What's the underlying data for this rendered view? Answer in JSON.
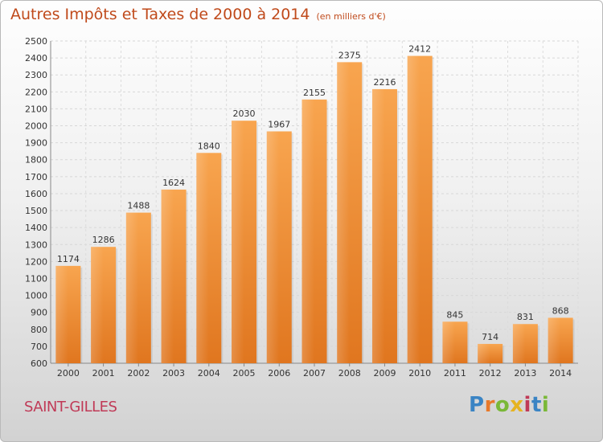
{
  "chart_data": {
    "type": "bar",
    "title": "Autres Impôts et Taxes de 2000 à 2014",
    "subtitle": "(en milliers d'€)",
    "categories": [
      "2000",
      "2001",
      "2002",
      "2003",
      "2004",
      "2005",
      "2006",
      "2007",
      "2008",
      "2009",
      "2010",
      "2011",
      "2012",
      "2013",
      "2014"
    ],
    "values": [
      1174,
      1286,
      1488,
      1624,
      1840,
      2030,
      1967,
      2155,
      2375,
      2216,
      2412,
      845,
      714,
      831,
      868
    ],
    "ylim": [
      600,
      2500
    ],
    "yticks": [
      600,
      700,
      800,
      900,
      1000,
      1100,
      1200,
      1300,
      1400,
      1500,
      1600,
      1700,
      1800,
      1900,
      2000,
      2100,
      2200,
      2300,
      2400,
      2500
    ],
    "xlabel": "",
    "ylabel": "",
    "grid": true,
    "bar_color": "#f29a45"
  },
  "footer": {
    "town": "SAINT-GILLES",
    "brand": "Proxiti",
    "brand_colors": [
      "#3a84c4",
      "#e8792a",
      "#7ab838",
      "#e6b320",
      "#c03a57",
      "#3a84c4",
      "#7ab838"
    ]
  }
}
